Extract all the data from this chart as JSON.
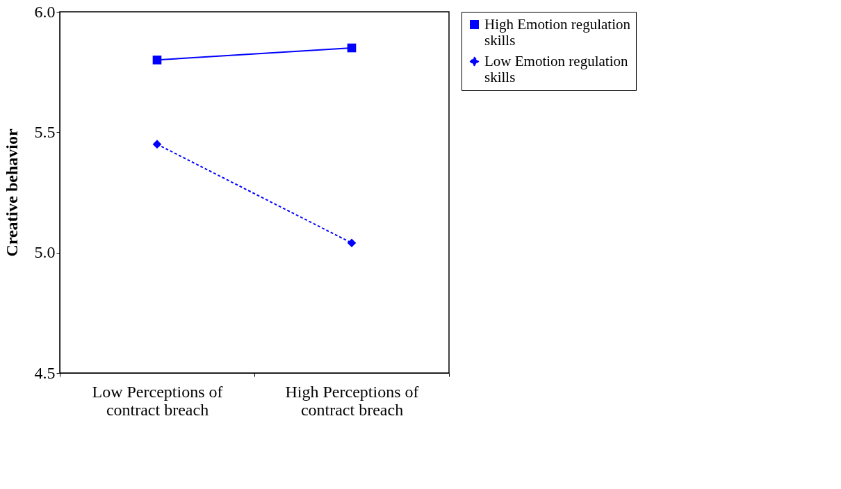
{
  "chart_data": {
    "type": "line",
    "ylabel": "Creative behavior",
    "categories": [
      "Low Perceptions of contract breach",
      "High Perceptions of contract breach"
    ],
    "series": [
      {
        "name": "High Emotion regulation skills",
        "color": "#0000ff",
        "values": [
          5.8,
          5.85
        ],
        "marker": "square",
        "line_style": "solid"
      },
      {
        "name": "Low Emotion regulation skills",
        "color": "#0000ff",
        "values": [
          5.45,
          5.04
        ],
        "marker": "diamond",
        "line_style": "dashed"
      }
    ],
    "ylim": [
      4.5,
      6.0
    ],
    "yticks": [
      {
        "value": 4.5,
        "label": "4.5"
      },
      {
        "value": 5.0,
        "label": "5.0"
      },
      {
        "value": 5.5,
        "label": "5.5"
      },
      {
        "value": 6.0,
        "label": "6.0"
      }
    ],
    "grid": false,
    "legend": "right"
  }
}
